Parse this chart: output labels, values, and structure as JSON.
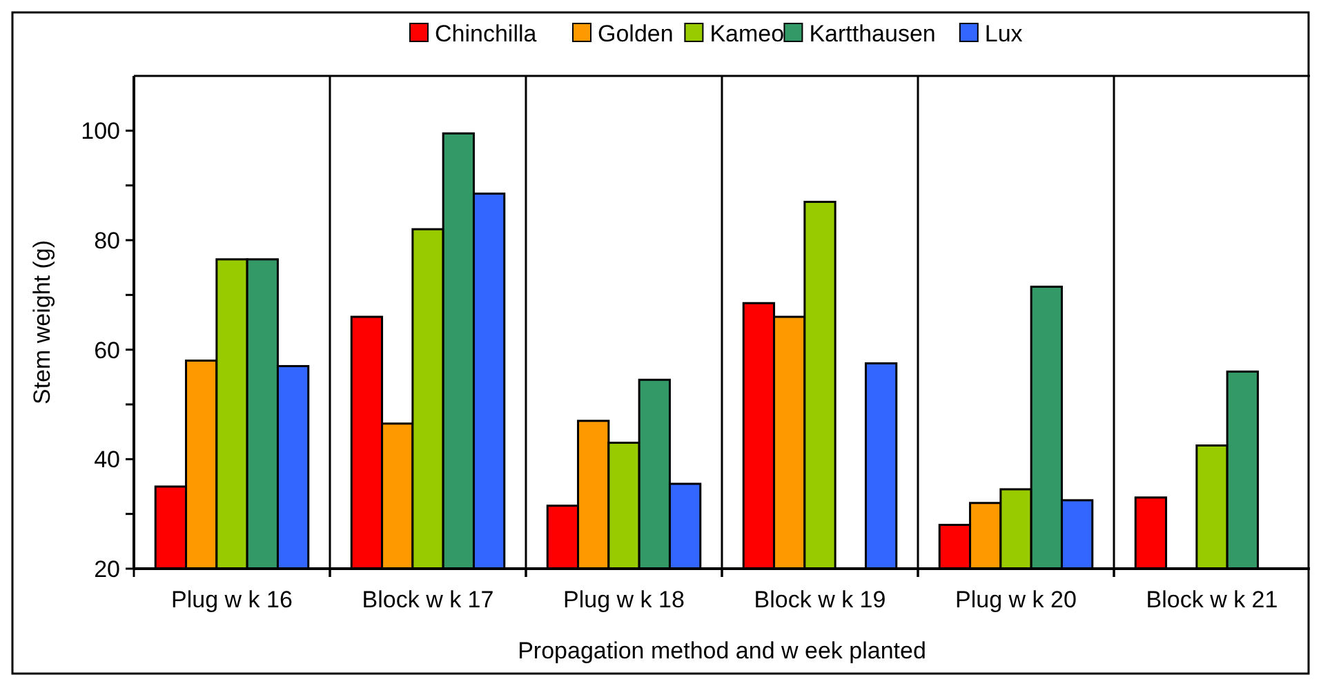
{
  "chart_data": {
    "type": "bar",
    "xlabel": "Propagation method and w eek planted",
    "ylabel": "Stem weight (g)",
    "categories": [
      "Plug w k 16",
      "Block w k 17",
      "Plug w k 18",
      "Block w k 19",
      "Plug w k 20",
      "Block w k 21"
    ],
    "series": [
      {
        "name": "Chinchilla",
        "color": "#ff0000",
        "values": [
          35,
          66,
          31.5,
          68.5,
          28,
          33
        ]
      },
      {
        "name": "Golden",
        "color": "#ff9900",
        "values": [
          58,
          46.5,
          47,
          66,
          32,
          null
        ]
      },
      {
        "name": "Kameo",
        "color": "#99cc00",
        "values": [
          76.5,
          82,
          43,
          87,
          34.5,
          42.5
        ]
      },
      {
        "name": "Kartthausen",
        "color": "#339966",
        "values": [
          76.5,
          99.5,
          54.5,
          null,
          71.5,
          56
        ]
      },
      {
        "name": "Lux",
        "color": "#3366ff",
        "values": [
          57,
          88.5,
          35.5,
          57.5,
          32.5,
          null
        ]
      }
    ],
    "ylim": [
      20,
      110
    ],
    "yticks": [
      20,
      {
        "value": 30,
        "label": null
      },
      40,
      {
        "value": 50,
        "label": null
      },
      60,
      {
        "value": 70,
        "label": null
      },
      80,
      {
        "value": 90,
        "label": null
      },
      100
    ],
    "grid": "x",
    "legend": "top"
  }
}
